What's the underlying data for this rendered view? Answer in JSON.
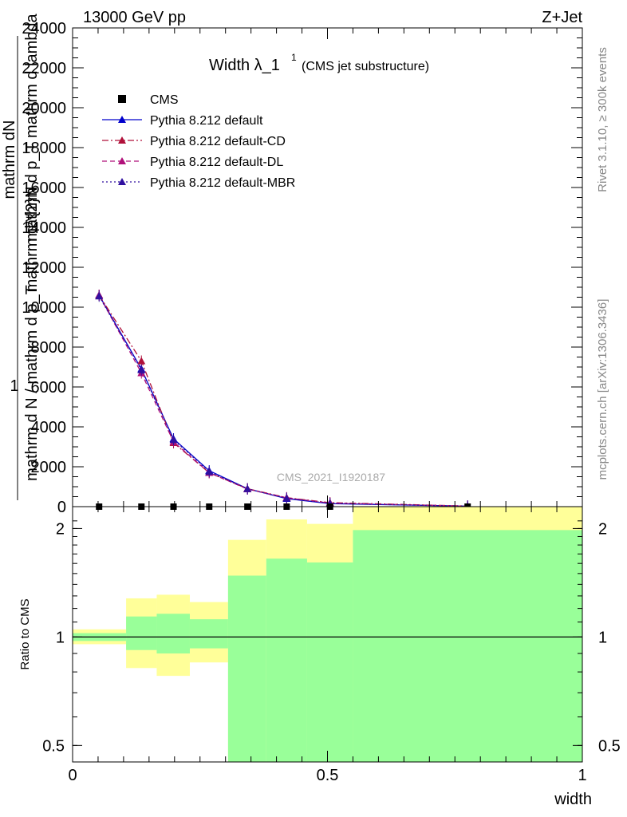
{
  "header": {
    "energy_label": "13000 GeV pp",
    "process_label": "Z+Jet",
    "plot_title": "Width λ_1",
    "plot_title_sup": "1",
    "plot_title_note": "(CMS jet substructure)",
    "rivet_label": "Rivet 3.1.10, ≥ 300k events",
    "mcplots_label": "mcplots.cern.ch [arXiv:1306.3436]",
    "analysis_label": "CMS_2021_I1920187"
  },
  "main_ylabel": {
    "frac_one": "1",
    "frac_num": "mathrm dN",
    "frac_den": "mathrm d p_T mathrm d lambda",
    "denom_main": "mathrm d N / mathrm d p_T",
    "numer_main": "mathrm d^{2}N"
  },
  "ratio_ylabel": "Ratio to CMS",
  "xlabel": "width",
  "legend": {
    "items": [
      {
        "label": "CMS",
        "color": "#000000",
        "marker": "square",
        "line": "none"
      },
      {
        "label": "Pythia 8.212 default",
        "color": "#0000cc",
        "marker": "triangle",
        "line": "solid"
      },
      {
        "label": "Pythia 8.212 default-CD",
        "color": "#b0103a",
        "marker": "triangle",
        "line": "dashdot"
      },
      {
        "label": "Pythia 8.212 default-DL",
        "color": "#b0107a",
        "marker": "triangle",
        "line": "dashed"
      },
      {
        "label": "Pythia 8.212 default-MBR",
        "color": "#3010a0",
        "marker": "triangle",
        "line": "dotted"
      }
    ]
  },
  "chart_data": {
    "type": "line",
    "xlim": [
      0,
      1
    ],
    "ylim": [
      0,
      24000
    ],
    "yticks": [
      0,
      2000,
      4000,
      6000,
      8000,
      10000,
      12000,
      14000,
      16000,
      18000,
      20000,
      22000,
      24000
    ],
    "yticklabels": [
      "0",
      "2000",
      "4000",
      "6000",
      "8000",
      "10000",
      "12000",
      "14000",
      "16000",
      "18000",
      "20000",
      "22000",
      "24000"
    ],
    "xticks": [
      0,
      0.5,
      1
    ],
    "xticklabels": [
      "0",
      "0.5",
      "1"
    ],
    "bin_edges": [
      0,
      0.105,
      0.165,
      0.23,
      0.305,
      0.38,
      0.46,
      0.55,
      1.0
    ],
    "cms": {
      "x": [
        0.052,
        0.135,
        0.198,
        0.268,
        0.343,
        0.42,
        0.505,
        0.775
      ],
      "y": [
        0,
        0,
        0,
        0,
        0,
        0,
        0,
        0
      ]
    },
    "series": [
      {
        "name": "Pythia 8.212 default",
        "x": [
          0.052,
          0.135,
          0.198,
          0.268,
          0.343,
          0.42,
          0.505,
          0.775
        ],
        "y": [
          10600,
          6900,
          3400,
          1800,
          900,
          400,
          150,
          25
        ]
      },
      {
        "name": "Pythia 8.212 default-CD",
        "x": [
          0.052,
          0.135,
          0.198,
          0.268,
          0.343,
          0.42,
          0.505,
          0.775
        ],
        "y": [
          10600,
          7300,
          3200,
          1700,
          900,
          450,
          200,
          30
        ]
      },
      {
        "name": "Pythia 8.212 default-DL",
        "x": [
          0.052,
          0.135,
          0.198,
          0.268,
          0.343,
          0.42,
          0.505,
          0.775
        ],
        "y": [
          10600,
          6700,
          3250,
          1700,
          880,
          440,
          180,
          28
        ]
      },
      {
        "name": "Pythia 8.212 default-MBR",
        "x": [
          0.052,
          0.135,
          0.198,
          0.268,
          0.343,
          0.42,
          0.505,
          0.775
        ],
        "y": [
          10550,
          6850,
          3350,
          1750,
          890,
          420,
          160,
          26
        ]
      }
    ],
    "ratio": {
      "ylim": [
        0.45,
        2.3
      ],
      "yticks": [
        0.5,
        1,
        2
      ],
      "yticklabels": [
        "0.5",
        "1",
        "2"
      ],
      "green_band": [
        {
          "x0": 0,
          "x1": 0.105,
          "lo": 0.975,
          "hi": 1.025
        },
        {
          "x0": 0.105,
          "x1": 0.165,
          "lo": 0.92,
          "hi": 1.14
        },
        {
          "x0": 0.165,
          "x1": 0.23,
          "lo": 0.9,
          "hi": 1.16
        },
        {
          "x0": 0.23,
          "x1": 0.305,
          "lo": 0.93,
          "hi": 1.12
        },
        {
          "x0": 0.305,
          "x1": 0.38,
          "lo": 0.45,
          "hi": 1.48
        },
        {
          "x0": 0.38,
          "x1": 0.46,
          "lo": 0.45,
          "hi": 1.65
        },
        {
          "x0": 0.46,
          "x1": 0.55,
          "lo": 0.45,
          "hi": 1.61
        },
        {
          "x0": 0.55,
          "x1": 1.0,
          "lo": 0.45,
          "hi": 1.98
        }
      ],
      "yellow_band": [
        {
          "x0": 0,
          "x1": 0.105,
          "lo": 0.955,
          "hi": 1.05
        },
        {
          "x0": 0.105,
          "x1": 0.165,
          "lo": 0.82,
          "hi": 1.28
        },
        {
          "x0": 0.165,
          "x1": 0.23,
          "lo": 0.78,
          "hi": 1.31
        },
        {
          "x0": 0.23,
          "x1": 0.305,
          "lo": 0.85,
          "hi": 1.25
        },
        {
          "x0": 0.305,
          "x1": 0.38,
          "lo": 0.45,
          "hi": 1.86
        },
        {
          "x0": 0.38,
          "x1": 0.46,
          "lo": 0.45,
          "hi": 2.12
        },
        {
          "x0": 0.46,
          "x1": 0.55,
          "lo": 0.45,
          "hi": 2.06
        },
        {
          "x0": 0.55,
          "x1": 1.0,
          "lo": 0.45,
          "hi": 2.3
        }
      ],
      "green_color": "#99ff99",
      "yellow_color": "#ffff99"
    }
  }
}
